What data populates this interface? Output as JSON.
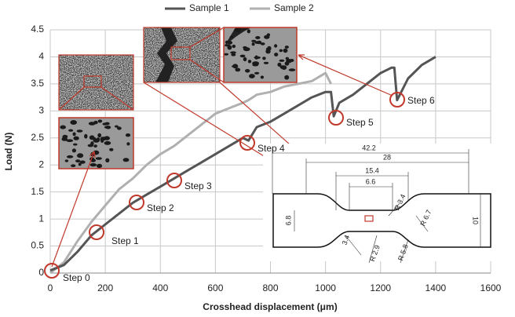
{
  "chart_data": {
    "type": "line",
    "x_label": "Crosshead displacement (μm)",
    "y_label": "Load (N)",
    "x": [
      0,
      50,
      100,
      150,
      200,
      250,
      300,
      350,
      400,
      450,
      500,
      550,
      600,
      650,
      700,
      720,
      750,
      800,
      850,
      900,
      950,
      1000,
      1020,
      1030,
      1050,
      1100,
      1150,
      1200,
      1240,
      1250,
      1260,
      1300,
      1350,
      1400
    ],
    "series": [
      {
        "name": "Sample 1",
        "color": "#555555",
        "values": [
          0.05,
          0.15,
          0.4,
          0.7,
          0.9,
          1.1,
          1.3,
          1.45,
          1.6,
          1.75,
          1.9,
          2.05,
          2.2,
          2.35,
          2.5,
          2.45,
          2.7,
          2.8,
          2.95,
          3.1,
          3.25,
          3.35,
          3.35,
          2.9,
          3.15,
          3.3,
          3.5,
          3.7,
          3.8,
          3.8,
          3.2,
          3.6,
          3.85,
          4.0
        ]
      },
      {
        "name": "Sample 2",
        "color": "#b0b0b0",
        "values": [
          0,
          0.2,
          0.6,
          0.95,
          1.25,
          1.55,
          1.75,
          2.0,
          2.2,
          2.35,
          2.55,
          2.75,
          2.95,
          3.05,
          3.15,
          3.2,
          3.3,
          3.35,
          3.45,
          3.5,
          3.55,
          3.7,
          3.5,
          null,
          null,
          null,
          null,
          null,
          null,
          null,
          null,
          null,
          null,
          null
        ]
      }
    ],
    "xlim": [
      0,
      1600
    ],
    "xticks": [
      0,
      200,
      400,
      600,
      800,
      1000,
      1200,
      1400,
      1600
    ],
    "ylim": [
      0,
      4.5
    ],
    "yticks": [
      0,
      0.5,
      1,
      1.5,
      2,
      2.5,
      3,
      3.5,
      4,
      4.5
    ],
    "grid": true,
    "legend": "top",
    "annotations": [
      "Step 0",
      "Step 1",
      "Step 2",
      "Step 3",
      "Step 4",
      "Step 5",
      "Step 6"
    ],
    "specimen_dimensions": [
      "42.2",
      "28",
      "15.4",
      "6.6",
      "6.8",
      "10",
      "R 3.4",
      "R 6.7",
      "R 2.9",
      "R 5.8",
      "3.4"
    ]
  }
}
